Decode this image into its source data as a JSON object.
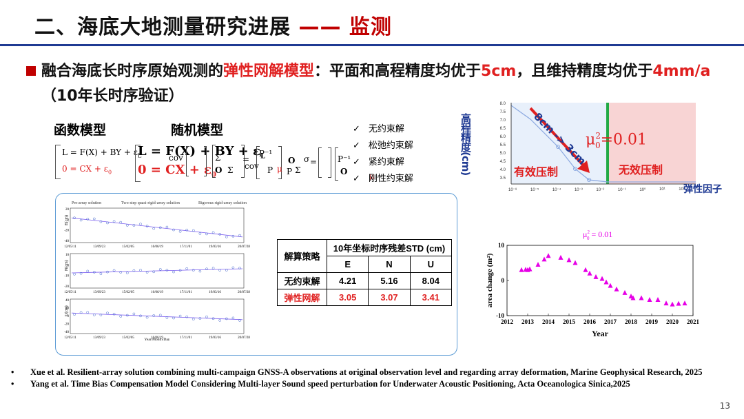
{
  "header": {
    "title_main": "二、海底大地测量研究进展",
    "title_dash": "——",
    "title_accent": "监测"
  },
  "headline": {
    "part1": "融合海底长时序原始观测的",
    "part2": "弹性网解模型",
    "part3": "：平面和高程精度均优于",
    "part4": "5cm",
    "part5": "，且维持精度均优于",
    "part6": "4mm/a",
    "part7": "（10年长时序验证）"
  },
  "models": {
    "function_label": "函数模型",
    "random_label": "随机模型",
    "f_eq1": "L = F(X) + BY + ε",
    "f_eq2": "0 = CX + ε",
    "f_sub_L": "L",
    "f_sub_0": "0",
    "r_eq1": "L = F(X) + BY + ε",
    "r_eq2": "0 = CX + ε",
    "cov_text": "cov",
    "sigma_text": "σ",
    "mu_text": "μ",
    "bold_o": "O",
    "p_inv": "P⁻¹",
    "p_L": "P",
    "p_0": "P",
    "sigma_sym": "Σ",
    "eq_sign": "="
  },
  "constraints": {
    "check": "✓",
    "items": [
      "无约束解",
      "松弛约束解",
      "紧约束解",
      "刚性约束解"
    ]
  },
  "time_series": {
    "legend": [
      "Pre-array solution",
      "Two-step quasi-rigid-array solution",
      "Rigorous rigid-array solution"
    ],
    "x_ticks": [
      "12/05/11",
      "13/09/23",
      "15/02/05",
      "16/06/19",
      "17/11/01",
      "19/03/16",
      "20/07/28"
    ],
    "xlabel": "Year/Month/Day",
    "panels": [
      {
        "ylabel": "E(cm)",
        "ticks": [
          "20",
          "0",
          "-20",
          "-40"
        ]
      },
      {
        "ylabel": "N(cm)",
        "ticks": [
          "10",
          "0",
          "-10",
          "-20"
        ]
      },
      {
        "ylabel": "U(cm)",
        "ticks": [
          "40",
          "20",
          "0",
          "-20",
          "-40"
        ]
      }
    ]
  },
  "table": {
    "strategy_label": "解算策略",
    "header": "10年坐标时序残差STD (cm)",
    "cols": [
      "E",
      "N",
      "U"
    ],
    "rows": [
      {
        "name": "无约束解",
        "values": [
          "4.21",
          "5.16",
          "8.04"
        ],
        "highlight": false
      },
      {
        "name": "弹性网解",
        "values": [
          "3.05",
          "3.07",
          "3.41"
        ],
        "highlight": true
      }
    ]
  },
  "elastic_chart": {
    "ylabel": "高程精度(cm)",
    "arrow_text": "8cm -> 3cm",
    "mu_label": "μ",
    "mu_value": "=0.01",
    "mu_exp": "2",
    "mu_sub": "0",
    "effective": "有效压制",
    "ineffective": "无效压制",
    "xlabel": "弹性因子",
    "y_ticks": [
      "8.0",
      "7.5",
      "7.0",
      "6.5",
      "6.0",
      "5.5",
      "5.0",
      "4.5",
      "4.0",
      "3.5"
    ],
    "x_ticks": [
      "10⁻⁸",
      "10⁻⁵",
      "10⁻⁴",
      "10⁻³",
      "10⁻²",
      "10⁻¹",
      "10⁰",
      "10¹",
      "10²"
    ],
    "colors": {
      "green": "#22aa44",
      "pink": "#f8d4d4",
      "arrow": "#e02020",
      "curve": "#8aa8e0"
    }
  },
  "chart_data": {
    "type": "scatter",
    "title": "μ₀² = 0.01",
    "annotation_mu": "μ",
    "annotation_value": " = 0.01",
    "xlabel": "Year",
    "ylabel": "area change (m²)",
    "xlim": [
      2012,
      2021
    ],
    "ylim": [
      -10,
      10
    ],
    "x_ticks": [
      "2012",
      "2013",
      "2014",
      "2015",
      "2016",
      "2017",
      "2018",
      "2019",
      "2020",
      "2021"
    ],
    "y_ticks": [
      "10",
      "0",
      "-10"
    ],
    "series": [
      {
        "name": "area change",
        "color": "#e600e6",
        "x": [
          2012.7,
          2012.9,
          2013.0,
          2013.1,
          2013.5,
          2013.8,
          2014.0,
          2014.6,
          2015.0,
          2015.3,
          2015.8,
          2016.0,
          2016.3,
          2016.6,
          2016.8,
          2017.0,
          2017.3,
          2017.7,
          2018.0,
          2018.1,
          2018.5,
          2018.9,
          2019.3,
          2019.7,
          2020.0,
          2020.3,
          2020.6
        ],
        "y": [
          3.0,
          3.1,
          3.0,
          3.2,
          4.5,
          6.0,
          7.0,
          6.5,
          5.8,
          5.0,
          3.0,
          2.0,
          1.0,
          0.5,
          -0.5,
          -1.5,
          -2.5,
          -3.5,
          -4.5,
          -5.0,
          -5.0,
          -5.5,
          -5.5,
          -6.5,
          -6.8,
          -6.6,
          -6.5
        ]
      }
    ]
  },
  "references": [
    "Xue et al. Resilient-array solution combining multi-campaign GNSS-A observations at original observation level and regarding array deformation, Marine Geophysical Research, 2025",
    "Yang et al. Time Bias Compensation Model Considering Multi-layer Sound speed perturbation for Underwater Acoustic Positioning, Acta Oceanologica Sinica,2025"
  ],
  "ref_bullet": "•",
  "page_number": "13"
}
